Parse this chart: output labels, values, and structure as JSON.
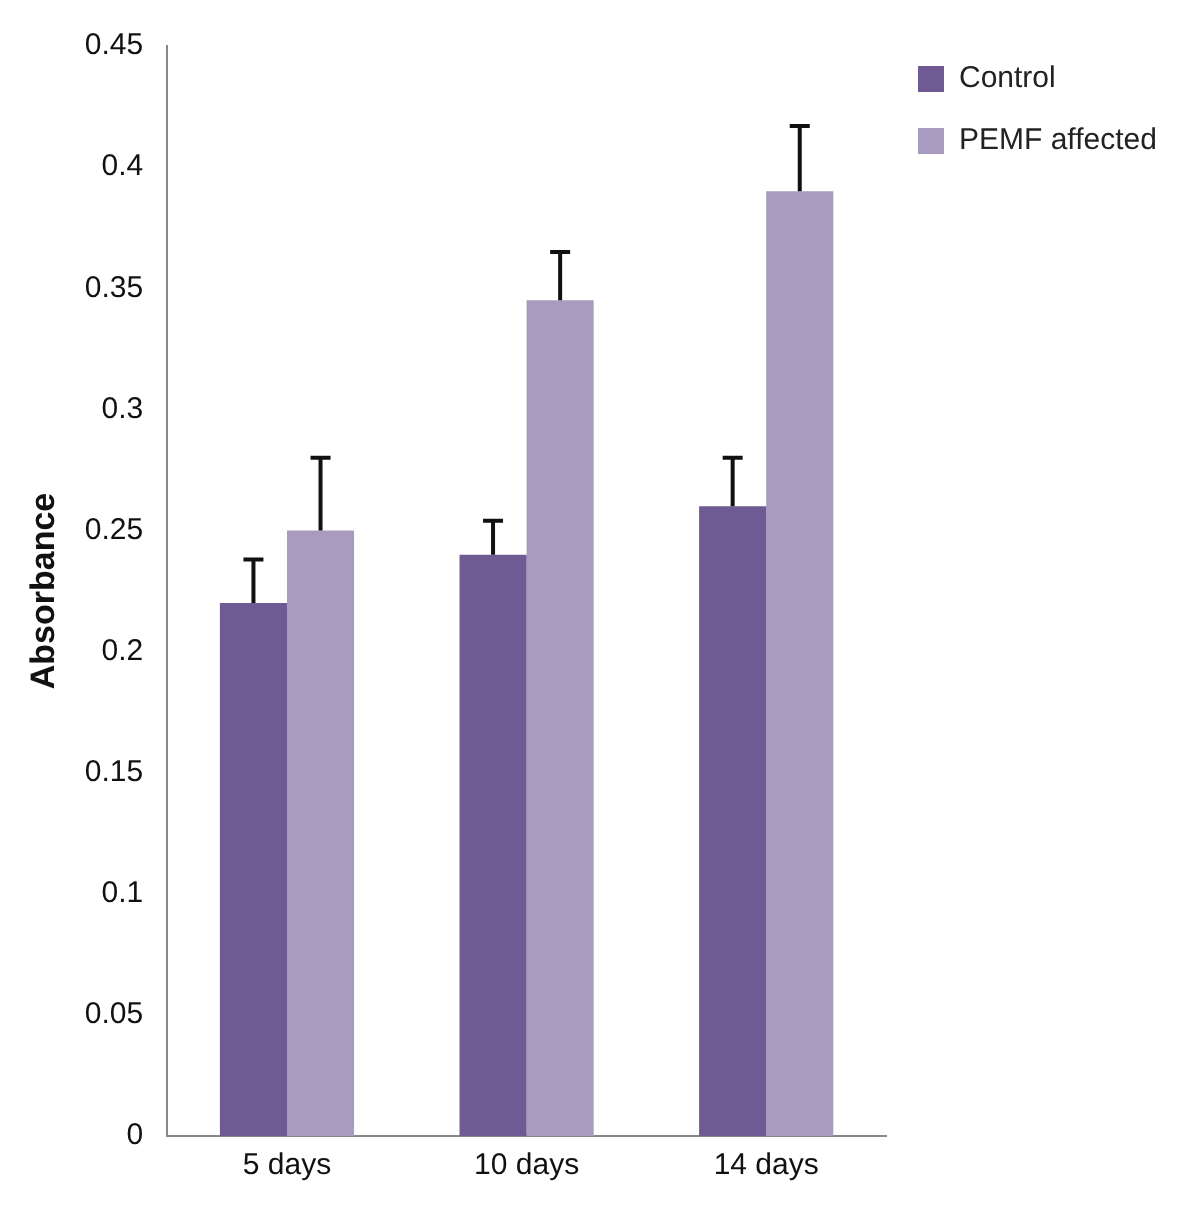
{
  "chart_data": {
    "type": "bar",
    "ylabel": "Absorbance",
    "categories": [
      "5 days",
      "10 days",
      "14 days"
    ],
    "series": [
      {
        "name": "Control",
        "color": "#6f5a94",
        "values": [
          0.22,
          0.24,
          0.26
        ],
        "errors": [
          [
            0.22,
            0.238
          ],
          [
            0.24,
            0.254
          ],
          [
            0.26,
            0.28
          ]
        ]
      },
      {
        "name": "PEMF affected",
        "color": "#a99bbf",
        "values": [
          0.25,
          0.345,
          0.39
        ],
        "errors": [
          [
            0.25,
            0.28
          ],
          [
            0.345,
            0.365
          ],
          [
            0.39,
            0.417
          ]
        ]
      }
    ],
    "ylim": [
      0,
      0.45
    ],
    "yticks": [
      0,
      0.05,
      0.1,
      0.15,
      0.2,
      0.25,
      0.3,
      0.35,
      0.4,
      0.45
    ],
    "grid": false,
    "legend": "top right"
  }
}
